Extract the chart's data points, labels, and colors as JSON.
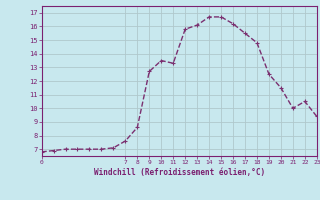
{
  "x": [
    0,
    1,
    2,
    3,
    4,
    5,
    6,
    7,
    8,
    9,
    10,
    11,
    12,
    13,
    14,
    15,
    16,
    17,
    18,
    19,
    20,
    21,
    22,
    23
  ],
  "y": [
    6.8,
    6.9,
    7.0,
    7.0,
    7.0,
    7.0,
    7.1,
    7.6,
    8.6,
    12.7,
    13.5,
    13.3,
    15.8,
    16.1,
    16.7,
    16.7,
    16.2,
    15.5,
    14.8,
    12.5,
    11.5,
    10.0,
    10.5,
    9.4
  ],
  "line_color": "#7b3070",
  "marker": "+",
  "marker_size": 3,
  "marker_linewidth": 0.8,
  "background_color": "#c8e8ee",
  "grid_color": "#b0c8cc",
  "ylim": [
    6.5,
    17.5
  ],
  "xlim": [
    0,
    23
  ],
  "yticks": [
    7,
    8,
    9,
    10,
    11,
    12,
    13,
    14,
    15,
    16,
    17
  ],
  "xticks": [
    0,
    7,
    8,
    9,
    10,
    11,
    12,
    13,
    14,
    15,
    16,
    17,
    18,
    19,
    20,
    21,
    22,
    23
  ],
  "xlabel": "Windchill (Refroidissement éolien,°C)",
  "xlabel_color": "#7b2070",
  "tick_color": "#7b2070",
  "axis_color": "#7b2070",
  "linewidth": 1.0,
  "linestyle": "--"
}
